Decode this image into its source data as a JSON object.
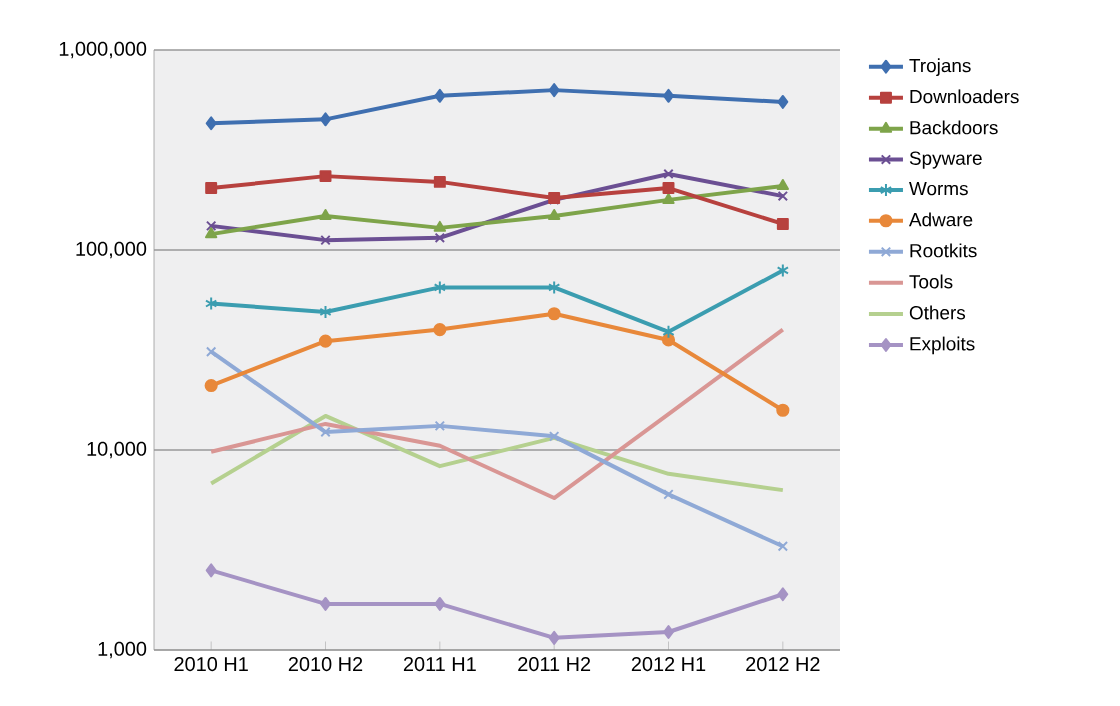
{
  "chart_data": {
    "type": "line",
    "log": "y",
    "grid": "y",
    "legend": "right",
    "categories": [
      "2010 H1",
      "2010 H2",
      "2011 H1",
      "2011 H2",
      "2012 H1",
      "2012 H2"
    ],
    "ylim": [
      1000,
      1000000
    ],
    "yticks": [
      {
        "value": 1000,
        "label": "1,000"
      },
      {
        "value": 10000,
        "label": "10,000"
      },
      {
        "value": 100000,
        "label": "100,000"
      },
      {
        "value": 1000000,
        "label": "1,000,000"
      }
    ],
    "series": [
      {
        "name": "Trojans",
        "color": "#3f6fb0",
        "marker": "diamond",
        "values": [
          430000,
          450000,
          590000,
          630000,
          590000,
          550000
        ]
      },
      {
        "name": "Downloaders",
        "color": "#b7413e",
        "marker": "square",
        "values": [
          204000,
          234000,
          219000,
          182000,
          204000,
          135000
        ]
      },
      {
        "name": "Backdoors",
        "color": "#7ea44a",
        "marker": "triangle",
        "values": [
          120000,
          148000,
          129000,
          148000,
          178000,
          209000
        ]
      },
      {
        "name": "Spyware",
        "color": "#6b4f93",
        "marker": "cross",
        "values": [
          132000,
          112000,
          115000,
          178000,
          240000,
          186000
        ]
      },
      {
        "name": "Worms",
        "color": "#3b9db0",
        "marker": "cross",
        "values": [
          54000,
          49000,
          65000,
          65000,
          39000,
          79000
        ]
      },
      {
        "name": "Adware",
        "color": "#e8883a",
        "marker": "circle",
        "values": [
          21000,
          35000,
          40000,
          48000,
          35500,
          15800
        ]
      },
      {
        "name": "Rootkits",
        "color": "#8fa9d6",
        "marker": "cross",
        "values": [
          31000,
          12300,
          13200,
          11700,
          6000,
          3300
        ]
      },
      {
        "name": "Tools",
        "color": "#d99694",
        "marker": "none",
        "values": [
          9800,
          13500,
          10500,
          5750,
          15100,
          40000
        ]
      },
      {
        "name": "Others",
        "color": "#b5d08f",
        "marker": "none",
        "values": [
          6800,
          14800,
          8300,
          11500,
          7600,
          6300
        ]
      },
      {
        "name": "Exploits",
        "color": "#a593c4",
        "marker": "diamond",
        "values": [
          2500,
          1700,
          1700,
          1150,
          1230,
          1900
        ]
      }
    ]
  }
}
